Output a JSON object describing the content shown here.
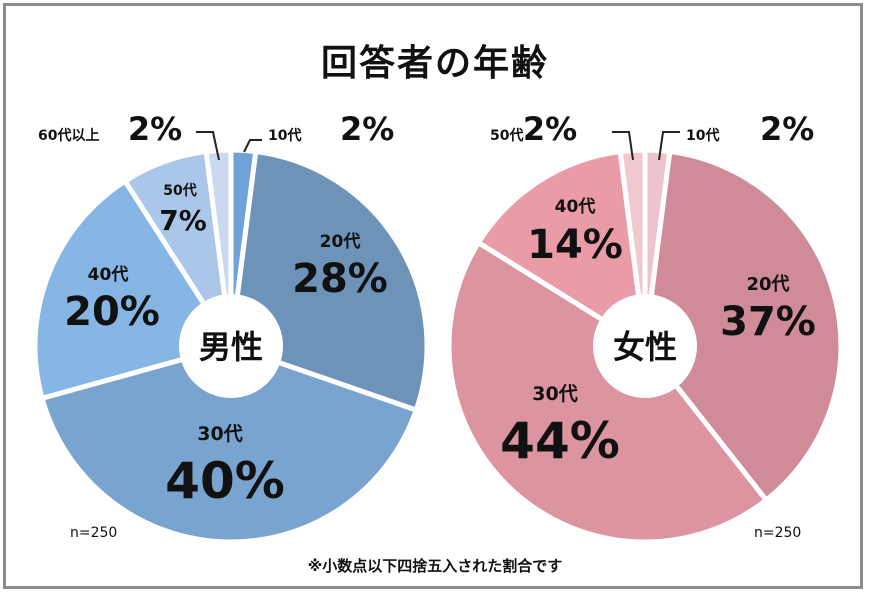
{
  "title": "回答者の年齢",
  "footnote": "※小数点以下四捨五入された割合です",
  "chart_data": [
    {
      "type": "pie",
      "center_label": "男性",
      "n_label": "n=250",
      "slices": [
        {
          "label": "10代",
          "value": 2,
          "value_text": "2%",
          "color": "#6fa3d8"
        },
        {
          "label": "20代",
          "value": 28,
          "value_text": "28%",
          "color": "#6e93b9"
        },
        {
          "label": "30代",
          "value": 40,
          "value_text": "40%",
          "color": "#7aa4d0"
        },
        {
          "label": "40代",
          "value": 20,
          "value_text": "20%",
          "color": "#86b6e4"
        },
        {
          "label": "50代",
          "value": 7,
          "value_text": "7%",
          "color": "#aac6e8"
        },
        {
          "label": "60代以上",
          "value": 2,
          "value_text": "2%",
          "color": "#c9d9ef"
        }
      ]
    },
    {
      "type": "pie",
      "center_label": "女性",
      "n_label": "n=250",
      "slices": [
        {
          "label": "10代",
          "value": 2,
          "value_text": "2%",
          "color": "#efc3cb"
        },
        {
          "label": "20代",
          "value": 37,
          "value_text": "37%",
          "color": "#cf8b98"
        },
        {
          "label": "30代",
          "value": 44,
          "value_text": "44%",
          "color": "#dc94a1"
        },
        {
          "label": "40代",
          "value": 14,
          "value_text": "14%",
          "color": "#ea9ba8"
        },
        {
          "label": "50代",
          "value": 2,
          "value_text": "2%",
          "color": "#f2c8cf"
        }
      ]
    }
  ]
}
